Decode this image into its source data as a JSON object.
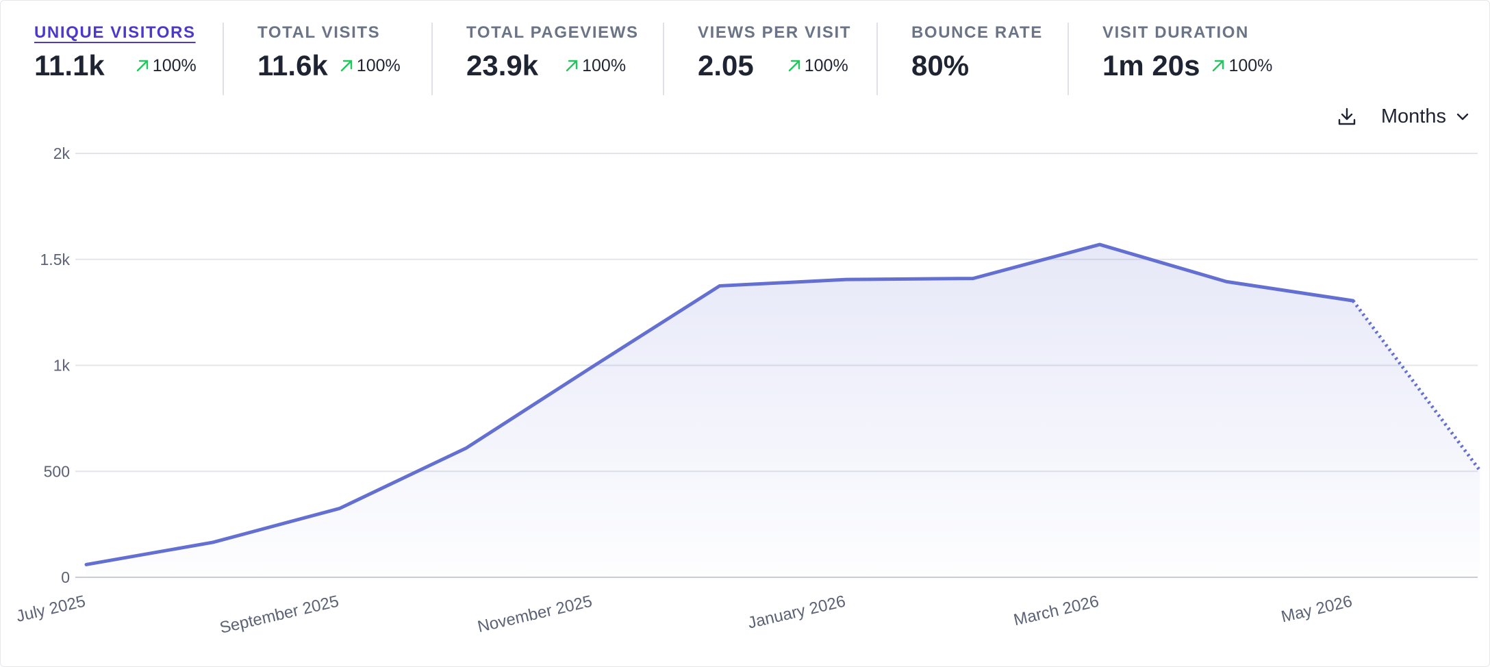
{
  "stats": [
    {
      "label": "UNIQUE VISITORS",
      "value": "11.1k",
      "change": "100%",
      "active": true
    },
    {
      "label": "TOTAL VISITS",
      "value": "11.6k",
      "change": "100%",
      "active": false
    },
    {
      "label": "TOTAL PAGEVIEWS",
      "value": "23.9k",
      "change": "100%",
      "active": false
    },
    {
      "label": "VIEWS PER VISIT",
      "value": "2.05",
      "change": "100%",
      "active": false
    },
    {
      "label": "BOUNCE RATE",
      "value": "80%",
      "change": "",
      "active": false
    },
    {
      "label": "VISIT DURATION",
      "value": "1m 20s",
      "change": "100%",
      "active": false
    }
  ],
  "toolbar": {
    "download_icon": "download-icon",
    "interval_label": "Months"
  },
  "colors": {
    "line": "#6470d1",
    "active_tab": "#4b39cc",
    "change_up": "#22c55e",
    "grid": "#e3e5ea"
  },
  "chart_data": {
    "type": "line",
    "x": [
      "2025-07",
      "2025-08",
      "2025-09",
      "2025-10",
      "2025-11",
      "2025-12",
      "2026-01",
      "2026-02",
      "2026-03",
      "2026-04",
      "2026-05",
      "2026-06"
    ],
    "x_tick_labels": [
      "July 2025",
      "September 2025",
      "November 2025",
      "January 2026",
      "March 2026",
      "May 2026"
    ],
    "x_tick_indices": [
      0,
      2,
      4,
      6,
      8,
      10
    ],
    "series": [
      {
        "values": [
          60,
          165,
          325,
          610,
          995,
          1375,
          1405,
          1410,
          1570,
          1395,
          1305,
          505
        ]
      }
    ],
    "incomplete_last_point": true,
    "y_ticks": [
      "0",
      "500",
      "1k",
      "1.5k",
      "2k"
    ],
    "ylim": [
      0,
      2000
    ],
    "grid": true,
    "area_fill": true
  }
}
